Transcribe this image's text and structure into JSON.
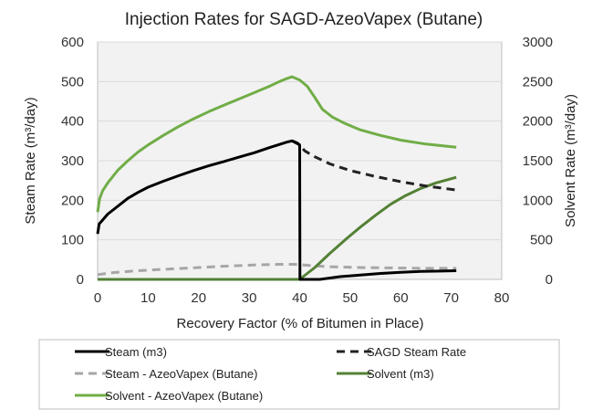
{
  "chart_data": {
    "type": "line",
    "title": "Injection Rates for SAGD-AzeoVapex (Butane)",
    "xlabel": "Recovery Factor (% of Bitumen in Place)",
    "ylabel_left": "Steam Rate (m³/day)",
    "ylabel_right": "Solvent Rate (m³/day)",
    "xlim": [
      0,
      80
    ],
    "ylim_left": [
      0,
      600
    ],
    "ylim_right": [
      0,
      3000
    ],
    "x_ticks": [
      0,
      10,
      20,
      30,
      40,
      50,
      60,
      70,
      80
    ],
    "y_left_ticks": [
      0,
      100,
      200,
      300,
      400,
      500,
      600
    ],
    "y_right_ticks": [
      0,
      500,
      1000,
      1500,
      2000,
      2500,
      3000
    ],
    "legend_position": "bottom",
    "series": [
      {
        "name": "Steam (m3)",
        "axis": "left",
        "color": "#000000",
        "dash": "solid",
        "points": [
          [
            0,
            115
          ],
          [
            0.3,
            140
          ],
          [
            1,
            150
          ],
          [
            2,
            165
          ],
          [
            4,
            185
          ],
          [
            6,
            205
          ],
          [
            8,
            220
          ],
          [
            10,
            233
          ],
          [
            13,
            248
          ],
          [
            16,
            262
          ],
          [
            19,
            275
          ],
          [
            22,
            287
          ],
          [
            25,
            298
          ],
          [
            28,
            309
          ],
          [
            31,
            320
          ],
          [
            34,
            333
          ],
          [
            36,
            341
          ],
          [
            37.5,
            347
          ],
          [
            38.5,
            350
          ],
          [
            39.5,
            345
          ],
          [
            40,
            340
          ],
          [
            40.05,
            0
          ],
          [
            44,
            0
          ],
          [
            48,
            7
          ],
          [
            52,
            11
          ],
          [
            56,
            15
          ],
          [
            60,
            18
          ],
          [
            64,
            20
          ],
          [
            68,
            21
          ],
          [
            71,
            22
          ]
        ]
      },
      {
        "name": "SAGD Steam Rate",
        "axis": "left",
        "color": "#222222",
        "dash": "dashed",
        "points": [
          [
            38.5,
            350
          ],
          [
            40,
            340
          ],
          [
            41,
            325
          ],
          [
            43,
            310
          ],
          [
            46,
            292
          ],
          [
            50,
            275
          ],
          [
            55,
            260
          ],
          [
            60,
            247
          ],
          [
            65,
            236
          ],
          [
            71,
            226
          ]
        ]
      },
      {
        "name": "Steam - AzeoVapex (Butane)",
        "axis": "left",
        "color": "#a6a6a6",
        "dash": "dashed",
        "points": [
          [
            0,
            12
          ],
          [
            3,
            17
          ],
          [
            8,
            22
          ],
          [
            14,
            26
          ],
          [
            20,
            30
          ],
          [
            26,
            34
          ],
          [
            32,
            37
          ],
          [
            36,
            38
          ],
          [
            39,
            38
          ],
          [
            42,
            35
          ],
          [
            46,
            32
          ],
          [
            52,
            30
          ],
          [
            58,
            29
          ],
          [
            64,
            28
          ],
          [
            71,
            28
          ]
        ]
      },
      {
        "name": "Solvent (m3)",
        "axis": "right",
        "color": "#538135",
        "dash": "solid",
        "points": [
          [
            0,
            0
          ],
          [
            40,
            0
          ],
          [
            43,
            150
          ],
          [
            46,
            330
          ],
          [
            49,
            500
          ],
          [
            52,
            660
          ],
          [
            55,
            810
          ],
          [
            58,
            950
          ],
          [
            61,
            1060
          ],
          [
            64,
            1150
          ],
          [
            67,
            1220
          ],
          [
            71,
            1290
          ]
        ]
      },
      {
        "name": "Solvent - AzeoVapex (Butane)",
        "axis": "right",
        "color": "#70ad47",
        "dash": "solid",
        "points": [
          [
            0,
            850
          ],
          [
            0.4,
            1020
          ],
          [
            1,
            1120
          ],
          [
            2,
            1220
          ],
          [
            4,
            1380
          ],
          [
            6,
            1500
          ],
          [
            8,
            1610
          ],
          [
            10,
            1700
          ],
          [
            13,
            1820
          ],
          [
            16,
            1930
          ],
          [
            19,
            2030
          ],
          [
            22,
            2120
          ],
          [
            25,
            2200
          ],
          [
            28,
            2280
          ],
          [
            31,
            2360
          ],
          [
            34,
            2440
          ],
          [
            36,
            2500
          ],
          [
            37.5,
            2540
          ],
          [
            38.5,
            2560
          ],
          [
            40,
            2520
          ],
          [
            41.5,
            2440
          ],
          [
            43,
            2300
          ],
          [
            44.5,
            2150
          ],
          [
            46.5,
            2050
          ],
          [
            49,
            1970
          ],
          [
            52,
            1890
          ],
          [
            56,
            1820
          ],
          [
            60,
            1760
          ],
          [
            65,
            1710
          ],
          [
            71,
            1670
          ]
        ]
      }
    ],
    "legend": [
      {
        "name": "Steam (m3)",
        "color": "#000000",
        "dash": "solid"
      },
      {
        "name": "SAGD Steam Rate",
        "color": "#222222",
        "dash": "dashed"
      },
      {
        "name": "Steam - AzeoVapex (Butane)",
        "color": "#a6a6a6",
        "dash": "dashed"
      },
      {
        "name": "Solvent (m3)",
        "color": "#538135",
        "dash": "solid"
      },
      {
        "name": "Solvent - AzeoVapex (Butane)",
        "color": "#70ad47",
        "dash": "solid"
      }
    ]
  }
}
